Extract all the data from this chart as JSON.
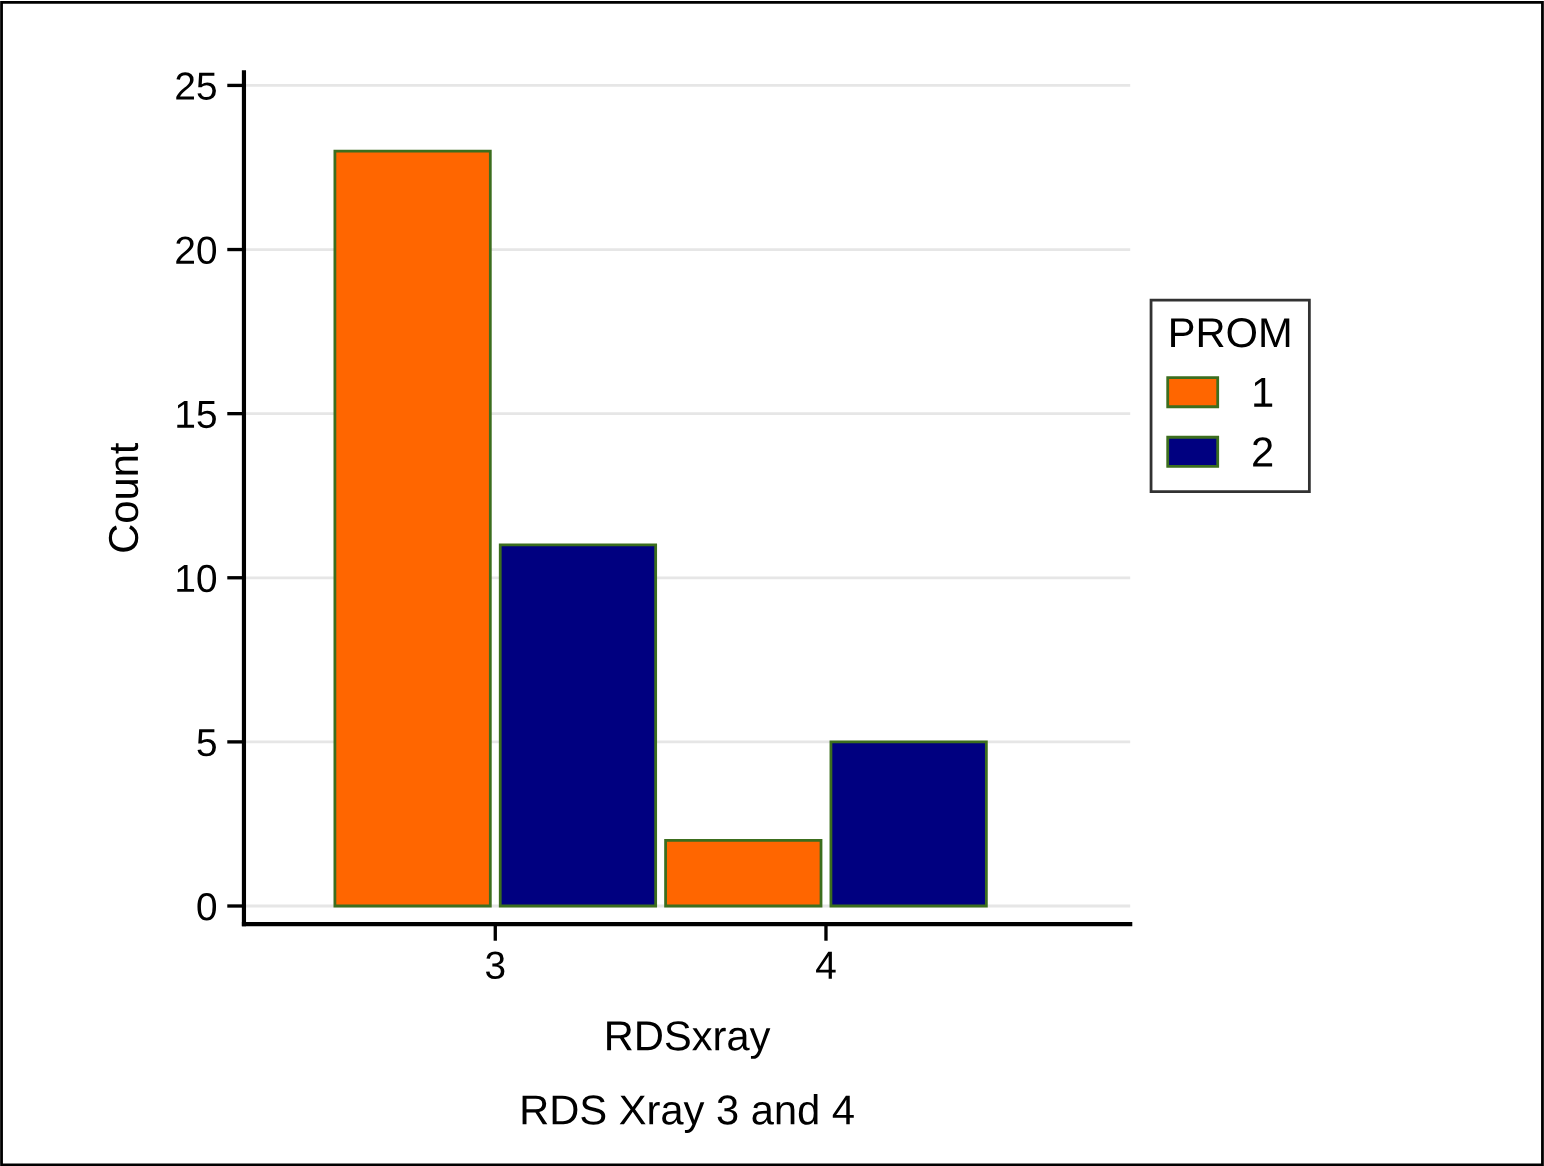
{
  "chart_data": {
    "type": "bar",
    "xlabel": "RDSxray",
    "ylabel": "Count",
    "legend_title": "PROM",
    "annotations": [
      "RDS Xray 3 and 4"
    ],
    "categories": [
      "3",
      "4"
    ],
    "series": [
      {
        "name": "1",
        "color": "#ff6600",
        "values": [
          23,
          2
        ]
      },
      {
        "name": "2",
        "color": "#000080",
        "values": [
          11,
          5
        ]
      }
    ],
    "ylim": [
      -0.55,
      25.4
    ],
    "yticks": [
      0,
      5,
      10,
      15,
      20,
      25
    ],
    "grid": "y",
    "legend": "right"
  }
}
